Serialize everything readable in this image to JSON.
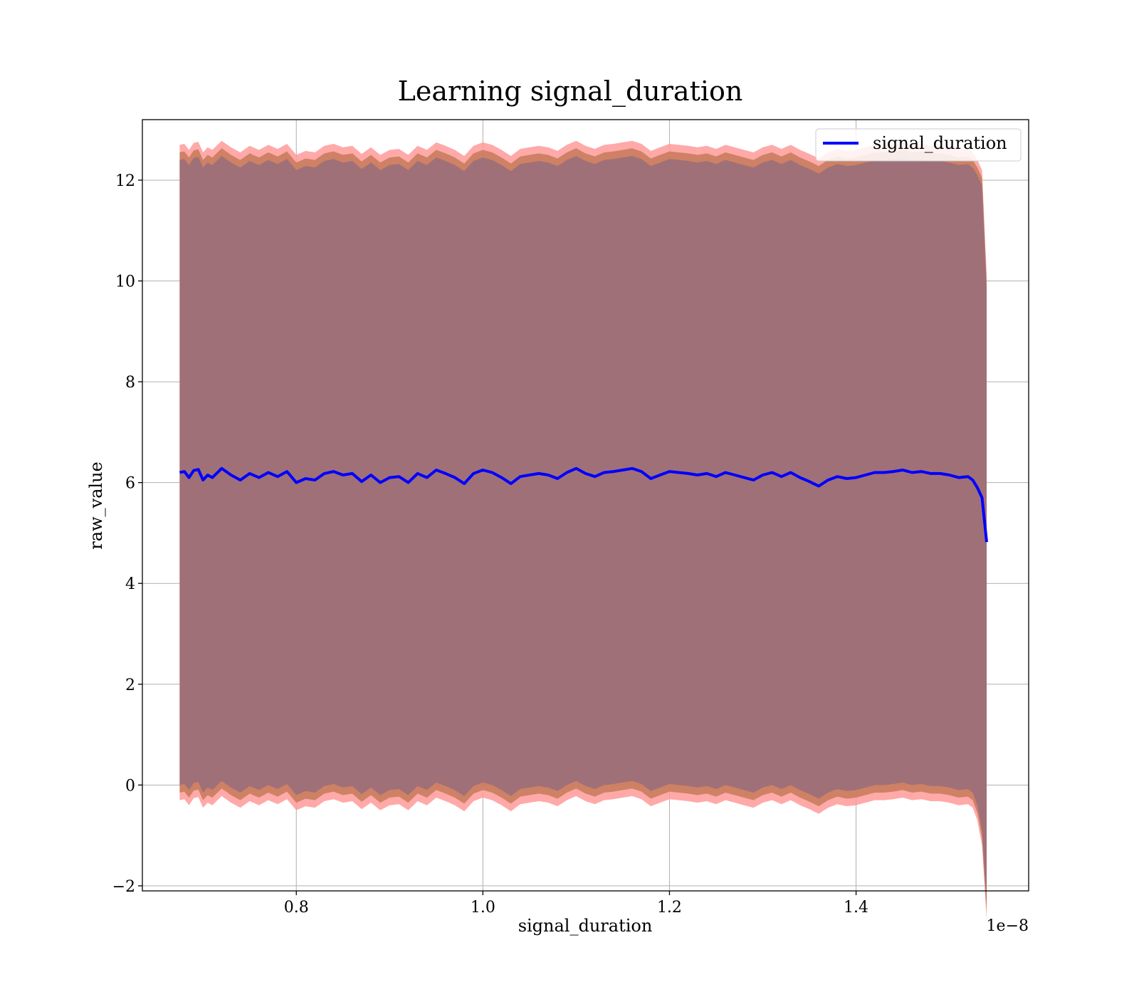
{
  "chart_data": {
    "type": "line",
    "title": "Learning signal_duration",
    "xlabel": "signal_duration",
    "ylabel": "raw_value",
    "x_offset_label": "1e−8",
    "xlim": [
      0.635,
      1.585
    ],
    "ylim": [
      -2.1,
      13.2
    ],
    "grid": true,
    "legend_position": "top-right",
    "x_ticks": [
      {
        "value": 0.8,
        "label": "0.8"
      },
      {
        "value": 1.0,
        "label": "1.0"
      },
      {
        "value": 1.2,
        "label": "1.2"
      },
      {
        "value": 1.4,
        "label": "1.4"
      }
    ],
    "y_ticks": [
      {
        "value": -2,
        "label": "−2"
      },
      {
        "value": 0,
        "label": "0"
      },
      {
        "value": 2,
        "label": "2"
      },
      {
        "value": 4,
        "label": "4"
      },
      {
        "value": 6,
        "label": "6"
      },
      {
        "value": 8,
        "label": "8"
      },
      {
        "value": 10,
        "label": "10"
      },
      {
        "value": 12,
        "label": "12"
      }
    ],
    "colors": {
      "line": "#0000ff",
      "band_outer": "#ff9a9a",
      "band_mid": "#c97c5d",
      "band_inner": "#a07078"
    },
    "series": [
      {
        "name": "signal_duration",
        "x": [
          0.675,
          0.68,
          0.685,
          0.69,
          0.695,
          0.7,
          0.705,
          0.71,
          0.72,
          0.73,
          0.74,
          0.75,
          0.76,
          0.77,
          0.78,
          0.79,
          0.8,
          0.81,
          0.82,
          0.83,
          0.84,
          0.85,
          0.86,
          0.87,
          0.88,
          0.89,
          0.9,
          0.91,
          0.92,
          0.93,
          0.94,
          0.95,
          0.96,
          0.97,
          0.98,
          0.99,
          1.0,
          1.01,
          1.02,
          1.03,
          1.04,
          1.05,
          1.06,
          1.07,
          1.08,
          1.09,
          1.1,
          1.11,
          1.12,
          1.13,
          1.14,
          1.15,
          1.16,
          1.17,
          1.18,
          1.19,
          1.2,
          1.21,
          1.22,
          1.23,
          1.24,
          1.25,
          1.26,
          1.27,
          1.28,
          1.29,
          1.3,
          1.31,
          1.32,
          1.33,
          1.34,
          1.35,
          1.36,
          1.37,
          1.38,
          1.39,
          1.4,
          1.41,
          1.42,
          1.43,
          1.44,
          1.45,
          1.46,
          1.47,
          1.48,
          1.49,
          1.5,
          1.51,
          1.52,
          1.525,
          1.53,
          1.535,
          1.54
        ],
        "y": [
          6.2,
          6.22,
          6.1,
          6.24,
          6.26,
          6.05,
          6.15,
          6.1,
          6.28,
          6.15,
          6.05,
          6.18,
          6.1,
          6.2,
          6.12,
          6.22,
          6.0,
          6.08,
          6.05,
          6.18,
          6.22,
          6.15,
          6.18,
          6.02,
          6.15,
          6.0,
          6.1,
          6.12,
          6.0,
          6.18,
          6.1,
          6.25,
          6.18,
          6.1,
          5.98,
          6.18,
          6.25,
          6.2,
          6.1,
          5.98,
          6.12,
          6.15,
          6.18,
          6.15,
          6.08,
          6.2,
          6.28,
          6.18,
          6.12,
          6.2,
          6.22,
          6.25,
          6.28,
          6.22,
          6.08,
          6.15,
          6.22,
          6.2,
          6.18,
          6.15,
          6.18,
          6.12,
          6.2,
          6.15,
          6.1,
          6.05,
          6.15,
          6.2,
          6.12,
          6.2,
          6.1,
          6.02,
          5.93,
          6.05,
          6.12,
          6.08,
          6.1,
          6.15,
          6.2,
          6.2,
          6.22,
          6.25,
          6.2,
          6.22,
          6.18,
          6.18,
          6.15,
          6.1,
          6.12,
          6.05,
          5.9,
          5.7,
          4.82
        ],
        "band_halfwidth": 6.2,
        "band_layers": [
          0.3,
          0.15,
          0.0
        ]
      }
    ]
  }
}
